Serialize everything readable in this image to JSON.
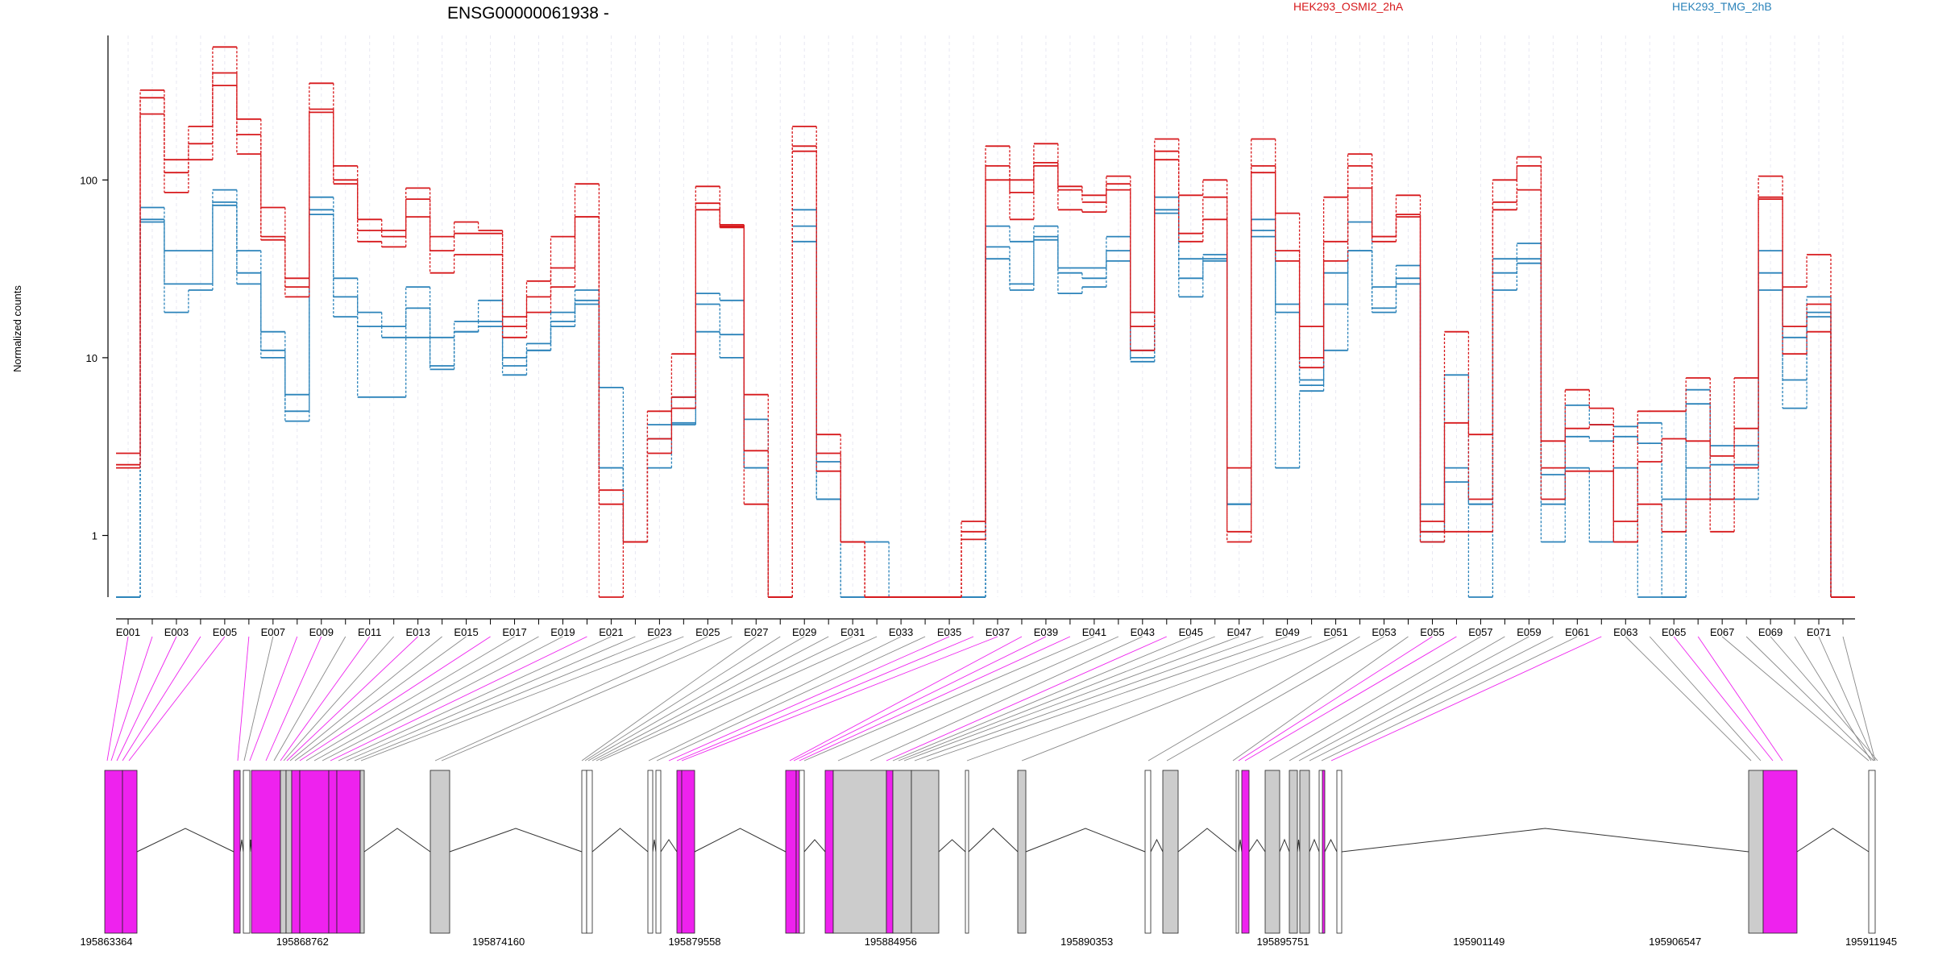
{
  "colors": {
    "treatment_a": "#d7191c",
    "treatment_b": "#2b83ba",
    "highlight_exon": "#ee22ee",
    "plain_exon": "#cccccc",
    "gridline": "#e8e8f2",
    "connector_gray": "#888888"
  },
  "chart_data": {
    "type": "line",
    "title": "ENSG00000061938 -",
    "xlabel": "",
    "ylabel": "Normalized counts",
    "y_scale": "log",
    "y_ticks": [
      "1",
      "10",
      "100"
    ],
    "y_tick_values": [
      1,
      10,
      100
    ],
    "ylim": [
      0.45,
      650
    ],
    "grid": "vertical dashed lines at each exon bin",
    "categories": [
      "E001",
      "E002",
      "E003",
      "E004",
      "E005",
      "E006",
      "E007",
      "E008",
      "E009",
      "E010",
      "E011",
      "E012",
      "E013",
      "E014",
      "E015",
      "E016",
      "E017",
      "E018",
      "E019",
      "E020",
      "E021",
      "E022",
      "E023",
      "E024",
      "E025",
      "E026",
      "E027",
      "E028",
      "E029",
      "E030",
      "E031",
      "E032",
      "E033",
      "E034",
      "E035",
      "E036",
      "E037",
      "E038",
      "E039",
      "E040",
      "E041",
      "E042",
      "E043",
      "E044",
      "E045",
      "E046",
      "E047",
      "E048",
      "E049",
      "E050",
      "E051",
      "E052",
      "E053",
      "E054",
      "E055",
      "E056",
      "E057",
      "E058",
      "E059",
      "E060",
      "E061",
      "E062",
      "E063",
      "E064",
      "E065",
      "E066",
      "E067",
      "E068",
      "E069",
      "E070",
      "E071",
      "E072"
    ],
    "x_tick_labels": [
      "E001",
      "E003",
      "E005",
      "E007",
      "E009",
      "E011",
      "E013",
      "E015",
      "E017",
      "E019",
      "E021",
      "E023",
      "E025",
      "E027",
      "E029",
      "E031",
      "E033",
      "E035",
      "E037",
      "E039",
      "E041",
      "E043",
      "E045",
      "E047",
      "E049",
      "E051",
      "E053",
      "E055",
      "E057",
      "E059",
      "E061",
      "E063",
      "E065",
      "E067",
      "E069",
      "E071"
    ],
    "legend": [
      "HEK293_OSMI2_2hA",
      "HEK293_TMG_2hB"
    ],
    "legend_placement": "top",
    "series": [
      {
        "name": "HEK293_OSMI2_2hA",
        "group": "a",
        "values": [
          2.9,
          320,
          130,
          200,
          560,
          220,
          70,
          28,
          350,
          120,
          60,
          52,
          90,
          48,
          58,
          52,
          17,
          27,
          48,
          95,
          0.45,
          0.92,
          5,
          10.5,
          92,
          56,
          6.2,
          0.45,
          200,
          3.7,
          0.92,
          0.45,
          0.45,
          0.45,
          0.45,
          1.2,
          155,
          100,
          160,
          92,
          82,
          105,
          18,
          170,
          82,
          100,
          2.4,
          170,
          65,
          15,
          80,
          140,
          48,
          82,
          1.2,
          14,
          3.7,
          100,
          135,
          3.4,
          6.6,
          5.2,
          1.2,
          5,
          5,
          7.7,
          2.8,
          7.7,
          105,
          25,
          38,
          0.45
        ]
      },
      {
        "name": "HEK293_OSMI2_2hA",
        "group": "a",
        "values": [
          2.5,
          290,
          110,
          160,
          400,
          180,
          48,
          25,
          250,
          100,
          52,
          48,
          78,
          40,
          50,
          50,
          15,
          22,
          32,
          62,
          1.8,
          0.92,
          3.5,
          6,
          74,
          55,
          3,
          0.45,
          155,
          2.9,
          0.92,
          0.45,
          0.45,
          0.45,
          0.45,
          1.05,
          120,
          85,
          125,
          88,
          75,
          95,
          15,
          145,
          50,
          80,
          1.05,
          120,
          40,
          10,
          45,
          120,
          48,
          64,
          1.05,
          4.3,
          1.6,
          75,
          120,
          2.4,
          4,
          4.2,
          0.92,
          2.6,
          3.5,
          3.4,
          1.6,
          4,
          80,
          15,
          20,
          0.45
        ]
      },
      {
        "name": "HEK293_OSMI2_2hA",
        "group": "a",
        "values": [
          2.4,
          235,
          85,
          130,
          340,
          140,
          46,
          22,
          240,
          95,
          45,
          42,
          62,
          30,
          38,
          38,
          13,
          18,
          25,
          62,
          1.5,
          0.92,
          2.9,
          5.2,
          68,
          54,
          1.5,
          0.45,
          145,
          2.3,
          0.92,
          0.45,
          0.45,
          0.45,
          0.45,
          0.95,
          100,
          60,
          120,
          68,
          66,
          88,
          11,
          130,
          45,
          60,
          0.92,
          110,
          35,
          8.8,
          35,
          90,
          45,
          62,
          0.92,
          1.05,
          1.05,
          68,
          88,
          1.6,
          2.3,
          2.3,
          0.92,
          1.5,
          1.05,
          1.6,
          1.05,
          2.4,
          78,
          10.5,
          14,
          0.45
        ]
      },
      {
        "name": "HEK293_TMG_2hB",
        "group": "b",
        "values": [
          0.45,
          70,
          40,
          40,
          88,
          40,
          14,
          6.2,
          80,
          28,
          18,
          15,
          25,
          13,
          16,
          21,
          10,
          12,
          18,
          24,
          6.8,
          0.92,
          4.2,
          6,
          23,
          21,
          4.5,
          0.45,
          68,
          2.6,
          0.92,
          0.92,
          0.45,
          0.45,
          0.45,
          0.45,
          55,
          45,
          55,
          32,
          32,
          48,
          11,
          80,
          36,
          38,
          1.5,
          60,
          20,
          7.5,
          30,
          58,
          25,
          33,
          1.5,
          8,
          1.5,
          36,
          44,
          2.2,
          5.4,
          4.2,
          4.1,
          4.3,
          0.45,
          6.6,
          3.2,
          3.2,
          40,
          13,
          22,
          0.45
        ]
      },
      {
        "name": "HEK293_TMG_2hB",
        "group": "b",
        "values": [
          0.45,
          60,
          26,
          26,
          75,
          30,
          11,
          5,
          68,
          22,
          15,
          13,
          19,
          9,
          14,
          16,
          9,
          11,
          16,
          21,
          2.4,
          0.92,
          3.5,
          4.2,
          20,
          13.5,
          2.4,
          0.45,
          55,
          1.6,
          0.45,
          0.45,
          0.45,
          0.45,
          0.45,
          0.45,
          42,
          26,
          48,
          30,
          28,
          40,
          10,
          68,
          28,
          36,
          1.5,
          52,
          18,
          7,
          20,
          40,
          19,
          28,
          1.05,
          2.4,
          1.5,
          30,
          34,
          1.5,
          3.6,
          3.4,
          3.6,
          3.3,
          1.6,
          5.5,
          2.5,
          2.5,
          30,
          7.5,
          18,
          0.45
        ]
      },
      {
        "name": "HEK293_TMG_2hB",
        "group": "b",
        "values": [
          0.45,
          58,
          18,
          24,
          72,
          26,
          10,
          4.4,
          64,
          17,
          6,
          6,
          13,
          8.6,
          14,
          15,
          8,
          11,
          15,
          20,
          2.4,
          0.92,
          2.4,
          4.3,
          14,
          10,
          2.4,
          0.45,
          45,
          1.6,
          0.45,
          0.45,
          0.45,
          0.45,
          0.45,
          0.45,
          36,
          24,
          46,
          23,
          25,
          35,
          9.5,
          65,
          22,
          35,
          1.5,
          48,
          2.4,
          6.5,
          11,
          40,
          18,
          26,
          0.92,
          2,
          0.45,
          24,
          36,
          0.92,
          2.4,
          0.92,
          2.4,
          0.45,
          0.45,
          2.4,
          1.6,
          1.6,
          24,
          5.2,
          17,
          0.45
        ]
      }
    ],
    "genomic_coordinates": [
      "195863364",
      "195868762",
      "195874160",
      "195879558",
      "195884956",
      "195890353",
      "195895751",
      "195901149",
      "195906547",
      "195911945"
    ]
  }
}
